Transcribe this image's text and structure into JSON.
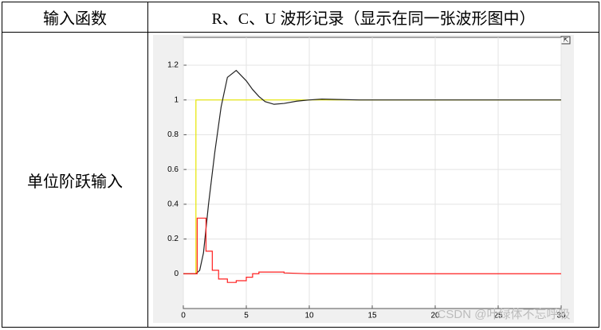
{
  "table": {
    "header": [
      "输入函数",
      "R、C、U 波形记录（显示在同一张波形图中）"
    ],
    "rows": [
      [
        "单位阶跃输入"
      ]
    ]
  },
  "chart_data": {
    "type": "line",
    "xlim": [
      0,
      30
    ],
    "xticks": [
      0,
      5,
      10,
      15,
      20,
      25,
      30
    ],
    "ylim": [
      -0.2,
      1.36
    ],
    "yticks": [
      0,
      0.2,
      0.4,
      0.6,
      0.8,
      1,
      1.2
    ],
    "grid": true,
    "series": [
      {
        "color": "#e6e600",
        "x": [
          0,
          1,
          1,
          30
        ],
        "values": [
          0,
          0,
          1,
          1
        ]
      },
      {
        "color": "#222222",
        "x": [
          0,
          1,
          1.3,
          1.6,
          2,
          2.5,
          3,
          3.5,
          4.2,
          5,
          5.5,
          6,
          6.5,
          7.2,
          8,
          9,
          10,
          11,
          12,
          14,
          30
        ],
        "values": [
          0,
          0,
          0.02,
          0.12,
          0.4,
          0.7,
          0.96,
          1.13,
          1.17,
          1.11,
          1.06,
          1.02,
          0.99,
          0.975,
          0.98,
          0.993,
          1.0,
          1.005,
          1.003,
          1.0,
          1.0
        ]
      },
      {
        "color": "#ff2020",
        "x": [
          0,
          1.1,
          1.1,
          1.8,
          1.8,
          2.3,
          2.3,
          2.8,
          2.8,
          3.5,
          3.5,
          4.2,
          4.2,
          5,
          5,
          5.5,
          5.5,
          6,
          6,
          8,
          8,
          10,
          30
        ],
        "values": [
          0,
          0,
          0.32,
          0.32,
          0.13,
          0.13,
          0.02,
          0.02,
          -0.03,
          -0.03,
          -0.05,
          -0.05,
          -0.04,
          -0.04,
          -0.02,
          -0.02,
          0,
          0,
          0.01,
          0.01,
          0.005,
          0,
          0
        ]
      }
    ]
  },
  "watermark": "CSDN @叶绿体不忘呼吸"
}
